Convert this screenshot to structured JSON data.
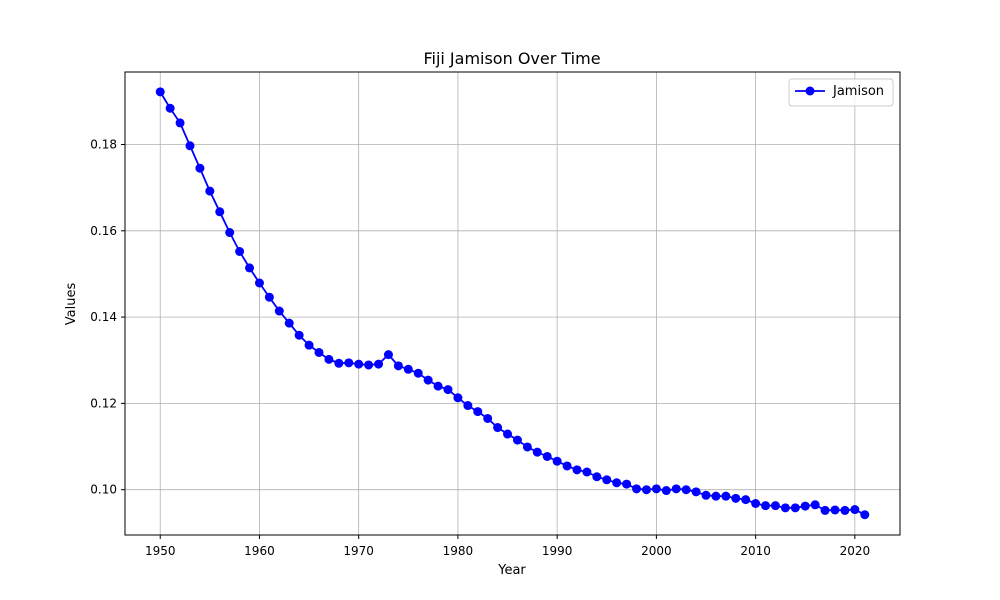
{
  "chart_data": {
    "type": "line",
    "title": "Fiji Jamison Over Time",
    "xlabel": "Year",
    "ylabel": "Values",
    "x": [
      1950,
      1951,
      1952,
      1953,
      1954,
      1955,
      1956,
      1957,
      1958,
      1959,
      1960,
      1961,
      1962,
      1963,
      1964,
      1965,
      1966,
      1967,
      1968,
      1969,
      1970,
      1971,
      1972,
      1973,
      1974,
      1975,
      1976,
      1977,
      1978,
      1979,
      1980,
      1981,
      1982,
      1983,
      1984,
      1985,
      1986,
      1987,
      1988,
      1989,
      1990,
      1991,
      1992,
      1993,
      1994,
      1995,
      1996,
      1997,
      1998,
      1999,
      2000,
      2001,
      2002,
      2003,
      2004,
      2005,
      2006,
      2007,
      2008,
      2009,
      2010,
      2011,
      2012,
      2013,
      2014,
      2015,
      2016,
      2017,
      2018,
      2019,
      2020,
      2021
    ],
    "series": [
      {
        "name": "Jamison",
        "color": "#0000ff",
        "values": [
          0.1922,
          0.1884,
          0.185,
          0.1797,
          0.1745,
          0.1692,
          0.1644,
          0.1596,
          0.1552,
          0.1514,
          0.1479,
          0.1446,
          0.1414,
          0.1386,
          0.1358,
          0.1335,
          0.1318,
          0.1302,
          0.1293,
          0.1294,
          0.1291,
          0.1289,
          0.1291,
          0.1313,
          0.1287,
          0.1279,
          0.127,
          0.1254,
          0.124,
          0.1232,
          0.1213,
          0.1195,
          0.1181,
          0.1165,
          0.1144,
          0.1129,
          0.1115,
          0.1099,
          0.1087,
          0.1077,
          0.1066,
          0.1055,
          0.1046,
          0.1041,
          0.103,
          0.1023,
          0.1016,
          0.1013,
          0.1002,
          0.1,
          0.1002,
          0.0998,
          0.1002,
          0.1,
          0.0995,
          0.0987,
          0.0985,
          0.0985,
          0.098,
          0.0977,
          0.0968,
          0.0963,
          0.0963,
          0.0958,
          0.0958,
          0.0962,
          0.0965,
          0.0952,
          0.0953,
          0.0952,
          0.0954,
          0.0942
        ]
      }
    ],
    "xlim": [
      1946.45,
      2024.55
    ],
    "ylim": [
      0.0895,
      0.1968
    ],
    "xticks": [
      1950,
      1960,
      1970,
      1980,
      1990,
      2000,
      2010,
      2020
    ],
    "yticks": [
      0.1,
      0.12,
      0.14,
      0.16,
      0.18
    ],
    "ytick_labels": [
      "0.10",
      "0.12",
      "0.14",
      "0.16",
      "0.18"
    ],
    "grid": true,
    "legend_position": "top-right"
  }
}
